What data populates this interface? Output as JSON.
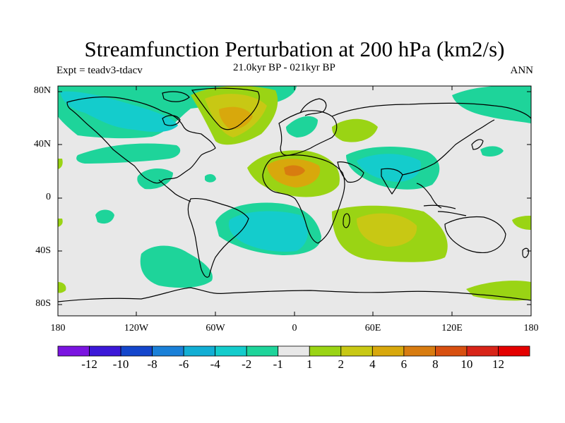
{
  "header": {
    "title": "Streamfunction Perturbation at 200 hPa (km2/s)",
    "experiment": "Expt = teadv3-tdacv",
    "period": "21.0kyr BP - 021kyr BP",
    "season": "ANN"
  },
  "axes": {
    "lat_labels": [
      "80N",
      "40N",
      "0",
      "40S",
      "80S"
    ],
    "lon_labels": [
      "180",
      "120W",
      "60W",
      "0",
      "60E",
      "120E",
      "180"
    ]
  },
  "colorbar": {
    "labels": [
      "-12",
      "-10",
      "-8",
      "-6",
      "-4",
      "-2",
      "-1",
      "1",
      "2",
      "4",
      "6",
      "8",
      "10",
      "12"
    ],
    "colors": [
      "#7a14e0",
      "#3c18d8",
      "#1446cc",
      "#1a80d8",
      "#12aed4",
      "#14cccc",
      "#1ed49a",
      "#e8e8e8",
      "#9ad414",
      "#c8c814",
      "#d8a80c",
      "#d87c10",
      "#d85010",
      "#d82418",
      "#e40000"
    ]
  },
  "map_style": {
    "background": "#e8e8e8",
    "coast_color": "#000000"
  }
}
